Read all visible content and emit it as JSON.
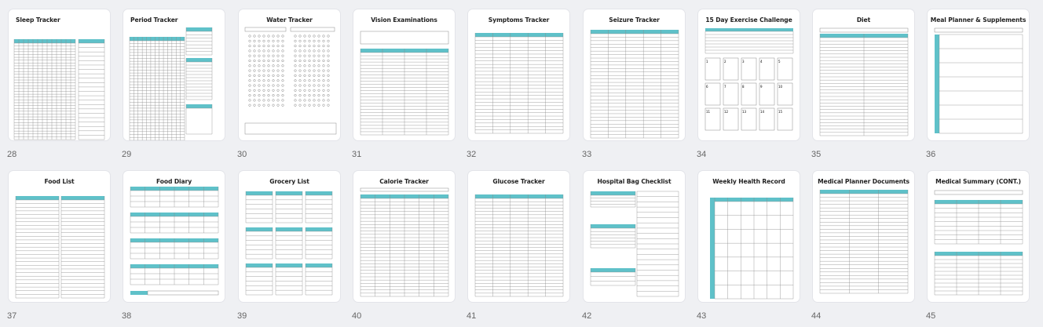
{
  "accent_color": "#5fc1c9",
  "pages": [
    {
      "number": "28",
      "title": "Sleep Tracker"
    },
    {
      "number": "29",
      "title": "Period Tracker"
    },
    {
      "number": "30",
      "title": "Water Tracker"
    },
    {
      "number": "31",
      "title": "Vision Examinations"
    },
    {
      "number": "32",
      "title": "Symptoms Tracker"
    },
    {
      "number": "33",
      "title": "Seizure Tracker"
    },
    {
      "number": "34",
      "title": "15 Day Exercise Challenge"
    },
    {
      "number": "35",
      "title": "Diet"
    },
    {
      "number": "36",
      "title": "Meal Planner & Supplements"
    },
    {
      "number": "37",
      "title": "Food List"
    },
    {
      "number": "38",
      "title": "Food Diary"
    },
    {
      "number": "39",
      "title": "Grocery List"
    },
    {
      "number": "40",
      "title": "Calorie Tracker"
    },
    {
      "number": "41",
      "title": "Glucose Tracker"
    },
    {
      "number": "42",
      "title": "Hospital Bag Checklist"
    },
    {
      "number": "43",
      "title": "Weekly  Health Record"
    },
    {
      "number": "44",
      "title": "Medical Planner Documents"
    },
    {
      "number": "45",
      "title": "Medical Summary (CONT.)"
    }
  ]
}
